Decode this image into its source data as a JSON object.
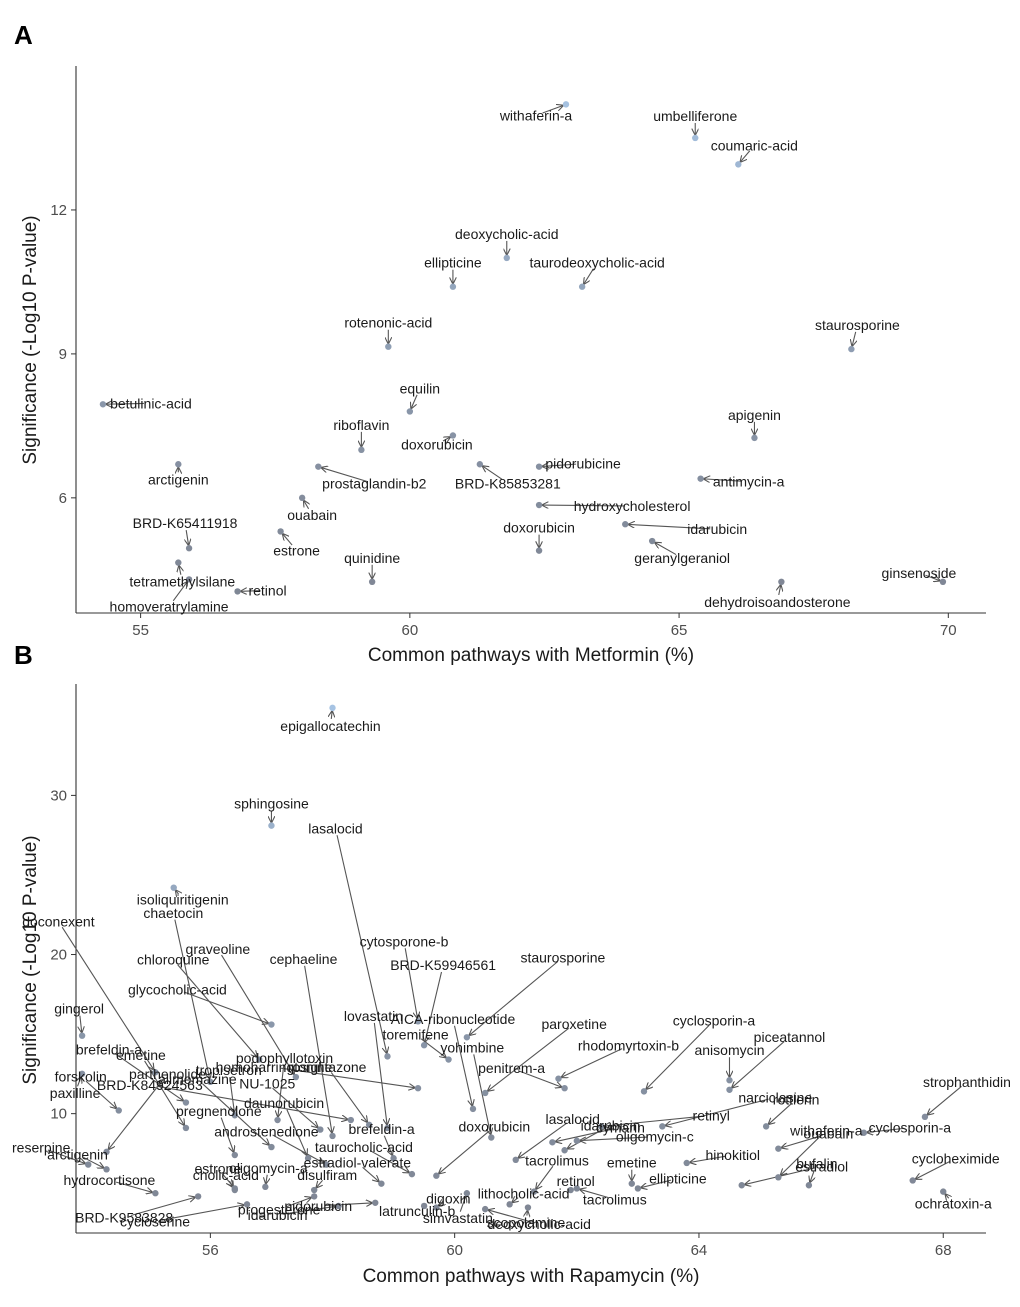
{
  "colors": {
    "point_high": "#a9c7e8",
    "point_low": "#7f8694",
    "leader": "#555555",
    "axis": "#333333"
  },
  "chart_data": [
    {
      "panel": "A",
      "type": "scatter",
      "xlabel": "Common pathways with Metformin (%)",
      "ylabel": "Significance (-Log10 P-value)",
      "xlim": [
        53.8,
        70.7
      ],
      "ylim": [
        3.6,
        15.0
      ],
      "xticks": [
        "55",
        "60",
        "65",
        "70"
      ],
      "yticks": [
        "6",
        "9",
        "12"
      ],
      "points": [
        {
          "x": 62.9,
          "y": 14.2,
          "label": "withaferin-a"
        },
        {
          "x": 65.3,
          "y": 13.5,
          "label": "umbelliferone"
        },
        {
          "x": 66.1,
          "y": 12.95,
          "label": "coumaric-acid"
        },
        {
          "x": 61.8,
          "y": 11.0,
          "label": "deoxycholic-acid"
        },
        {
          "x": 60.8,
          "y": 10.4,
          "label": "ellipticine"
        },
        {
          "x": 63.2,
          "y": 10.4,
          "label": "taurodeoxycholic-acid"
        },
        {
          "x": 59.6,
          "y": 9.15,
          "label": "rotenonic-acid"
        },
        {
          "x": 68.2,
          "y": 9.1,
          "label": "staurosporine"
        },
        {
          "x": 54.3,
          "y": 7.95,
          "label": "betulinic-acid"
        },
        {
          "x": 60.0,
          "y": 7.8,
          "label": "equilin"
        },
        {
          "x": 60.8,
          "y": 7.3,
          "label": "doxorubicin"
        },
        {
          "x": 59.1,
          "y": 7.0,
          "label": "riboflavin"
        },
        {
          "x": 66.4,
          "y": 7.25,
          "label": "apigenin"
        },
        {
          "x": 55.7,
          "y": 6.7,
          "label": "arctigenin"
        },
        {
          "x": 61.3,
          "y": 6.7,
          "label": "BRD-K85853281"
        },
        {
          "x": 62.4,
          "y": 6.65,
          "label": "pidorubicine"
        },
        {
          "x": 58.3,
          "y": 6.65,
          "label": "prostaglandin-b2"
        },
        {
          "x": 65.4,
          "y": 6.4,
          "label": "antimycin-a"
        },
        {
          "x": 58.0,
          "y": 6.0,
          "label": "ouabain"
        },
        {
          "x": 62.4,
          "y": 5.85,
          "label": "hydroxycholesterol"
        },
        {
          "x": 64.0,
          "y": 5.45,
          "label": "idarubicin"
        },
        {
          "x": 57.6,
          "y": 5.3,
          "label": "estrone"
        },
        {
          "x": 55.9,
          "y": 4.95,
          "label": "BRD-K65411918"
        },
        {
          "x": 64.5,
          "y": 5.1,
          "label": "geranylgeraniol"
        },
        {
          "x": 62.4,
          "y": 4.9,
          "label": "doxorubicin"
        },
        {
          "x": 55.7,
          "y": 4.65,
          "label": "tetramethylsilane"
        },
        {
          "x": 59.3,
          "y": 4.25,
          "label": "quinidine"
        },
        {
          "x": 66.9,
          "y": 4.25,
          "label": "dehydroisoandosterone"
        },
        {
          "x": 69.9,
          "y": 4.25,
          "label": "ginsenoside"
        },
        {
          "x": 56.8,
          "y": 4.05,
          "label": "retinol"
        },
        {
          "x": 55.9,
          "y": 4.3,
          "label": "homoveratrylamine"
        }
      ]
    },
    {
      "panel": "B",
      "type": "scatter",
      "xlabel": "Common pathways with Rapamycin (%)",
      "ylabel": "Significance (-Log10 P-value)",
      "xlim": [
        53.8,
        68.7
      ],
      "ylim": [
        2.5,
        37.0
      ],
      "xticks": [
        "56",
        "60",
        "64",
        "68"
      ],
      "yticks": [
        "10",
        "20",
        "30"
      ],
      "points": [
        {
          "x": 58.0,
          "y": 35.5,
          "label": "epigallocatechin"
        },
        {
          "x": 57.0,
          "y": 28.1,
          "label": "sphingosine"
        },
        {
          "x": 55.4,
          "y": 24.2,
          "label": "isoliquiritigenin"
        },
        {
          "x": 59.4,
          "y": 15.8,
          "label": "cytosporone-b"
        },
        {
          "x": 59.5,
          "y": 14.3,
          "label": "BRD-K59946561"
        },
        {
          "x": 60.2,
          "y": 14.8,
          "label": "staurosporine"
        },
        {
          "x": 57.0,
          "y": 15.6,
          "label": "glycocholic-acid"
        },
        {
          "x": 53.9,
          "y": 14.9,
          "label": "gingerol"
        },
        {
          "x": 53.9,
          "y": 12.5,
          "label": "paxilline"
        },
        {
          "x": 59.9,
          "y": 13.4,
          "label": "toremifene"
        },
        {
          "x": 60.5,
          "y": 11.3,
          "label": "paroxetine"
        },
        {
          "x": 61.7,
          "y": 12.2,
          "label": "rhodomyrtoxin-b"
        },
        {
          "x": 63.1,
          "y": 11.4,
          "label": "cyclosporin-a"
        },
        {
          "x": 61.8,
          "y": 11.6,
          "label": "penitrem-a"
        },
        {
          "x": 64.5,
          "y": 12.1,
          "label": "anisomycin"
        },
        {
          "x": 64.5,
          "y": 11.5,
          "label": "piceatannol"
        },
        {
          "x": 63.4,
          "y": 9.2,
          "label": "narciclasine"
        },
        {
          "x": 65.1,
          "y": 9.2,
          "label": "rottlerin"
        },
        {
          "x": 65.3,
          "y": 7.8,
          "label": "ouabain"
        },
        {
          "x": 67.7,
          "y": 9.8,
          "label": "strophanthidin"
        },
        {
          "x": 66.7,
          "y": 8.8,
          "label": "cyclosporin-a"
        },
        {
          "x": 65.3,
          "y": 6.0,
          "label": "withaferin-a"
        },
        {
          "x": 65.8,
          "y": 5.5,
          "label": "bufalin"
        },
        {
          "x": 67.5,
          "y": 5.8,
          "label": "cycloheximide"
        },
        {
          "x": 64.7,
          "y": 5.5,
          "label": "estradiol"
        },
        {
          "x": 68.0,
          "y": 5.1,
          "label": "ochratoxin-a"
        },
        {
          "x": 63.8,
          "y": 6.9,
          "label": "hinokitiol"
        },
        {
          "x": 62.0,
          "y": 8.3,
          "label": "oligomycin-c"
        },
        {
          "x": 62.4,
          "y": 9.2,
          "label": "retinyl"
        },
        {
          "x": 61.6,
          "y": 8.2,
          "label": "cymarin"
        },
        {
          "x": 61.3,
          "y": 5.1,
          "label": "tacrolimus"
        },
        {
          "x": 63.0,
          "y": 5.3,
          "label": "ellipticine"
        },
        {
          "x": 61.9,
          "y": 5.2,
          "label": "retinol"
        },
        {
          "x": 62.0,
          "y": 5.3,
          "label": "tacrolimus"
        },
        {
          "x": 61.8,
          "y": 7.7,
          "label": "idarubicin"
        },
        {
          "x": 60.5,
          "y": 4.0,
          "label": "deoxycholic-acid"
        },
        {
          "x": 61.2,
          "y": 4.1,
          "label": "scopolamine"
        },
        {
          "x": 60.9,
          "y": 4.3,
          "label": "lithocholic-acid"
        },
        {
          "x": 59.7,
          "y": 4.1,
          "label": "digoxin"
        },
        {
          "x": 60.2,
          "y": 5.0,
          "label": "simvastatin"
        },
        {
          "x": 59.5,
          "y": 4.2,
          "label": "latrunculin-b"
        },
        {
          "x": 58.7,
          "y": 4.4,
          "label": "pidorubicin"
        },
        {
          "x": 58.1,
          "y": 4.2,
          "label": "idarubicin"
        },
        {
          "x": 57.7,
          "y": 4.8,
          "label": "progesterone"
        },
        {
          "x": 56.6,
          "y": 4.3,
          "label": "cycloserine"
        },
        {
          "x": 55.8,
          "y": 4.8,
          "label": "BRD-K9583828"
        },
        {
          "x": 55.1,
          "y": 5.0,
          "label": "hydrocortisone"
        },
        {
          "x": 54.3,
          "y": 6.5,
          "label": "arctigenin"
        },
        {
          "x": 54.0,
          "y": 6.8,
          "label": "reserpine"
        },
        {
          "x": 56.4,
          "y": 5.2,
          "label": "cholic-acid"
        },
        {
          "x": 56.4,
          "y": 5.3,
          "label": "estrone"
        },
        {
          "x": 56.9,
          "y": 5.4,
          "label": "oligomycin-a"
        },
        {
          "x": 57.7,
          "y": 5.2,
          "label": "disulfiram"
        },
        {
          "x": 57.9,
          "y": 6.8,
          "label": "androstenedione"
        },
        {
          "x": 56.4,
          "y": 7.4,
          "label": "pregnenolone"
        },
        {
          "x": 57.0,
          "y": 7.9,
          "label": "alimemazine"
        },
        {
          "x": 56.4,
          "y": 9.9,
          "label": "tropisetron"
        },
        {
          "x": 55.6,
          "y": 9.1,
          "label": "emetine"
        },
        {
          "x": 54.5,
          "y": 10.2,
          "label": "forskolin"
        },
        {
          "x": 55.6,
          "y": 10.7,
          "label": "brefeldin-a"
        },
        {
          "x": 54.3,
          "y": 7.6,
          "label": "parthenolide"
        },
        {
          "x": 57.1,
          "y": 9.6,
          "label": "podophyllotoxin"
        },
        {
          "x": 57.8,
          "y": 9.0,
          "label": "NU-1025"
        },
        {
          "x": 58.6,
          "y": 9.3,
          "label": "rosiglitazone"
        },
        {
          "x": 58.9,
          "y": 9.1,
          "label": "lovastatin"
        },
        {
          "x": 58.0,
          "y": 8.6,
          "label": "cephaeline"
        },
        {
          "x": 57.6,
          "y": 7.2,
          "label": "daunorubicin"
        },
        {
          "x": 59.0,
          "y": 7.2,
          "label": "brefeldin-a"
        },
        {
          "x": 58.8,
          "y": 5.6,
          "label": "estradiol-valerate"
        },
        {
          "x": 59.3,
          "y": 6.2,
          "label": "taurocholic-acid"
        },
        {
          "x": 59.7,
          "y": 6.1,
          "label": "doxorubicin"
        },
        {
          "x": 60.3,
          "y": 10.3,
          "label": "AICA-ribonucleotide"
        },
        {
          "x": 61.0,
          "y": 7.1,
          "label": "lasalocid"
        },
        {
          "x": 60.6,
          "y": 8.5,
          "label": "yohimbine"
        },
        {
          "x": 56.8,
          "y": 13.4,
          "label": "chloroquine"
        },
        {
          "x": 57.4,
          "y": 12.3,
          "label": "graveoline"
        },
        {
          "x": 56.0,
          "y": 12.0,
          "label": "chaetocin"
        },
        {
          "x": 55.1,
          "y": 12.6,
          "label": "doconexent"
        },
        {
          "x": 58.9,
          "y": 13.6,
          "label": "lasalocid"
        },
        {
          "x": 58.3,
          "y": 9.6,
          "label": "BRD-K84924563"
        },
        {
          "x": 59.4,
          "y": 11.6,
          "label": "homoharringtonine"
        },
        {
          "x": 62.9,
          "y": 5.6,
          "label": "emetine"
        }
      ]
    }
  ]
}
